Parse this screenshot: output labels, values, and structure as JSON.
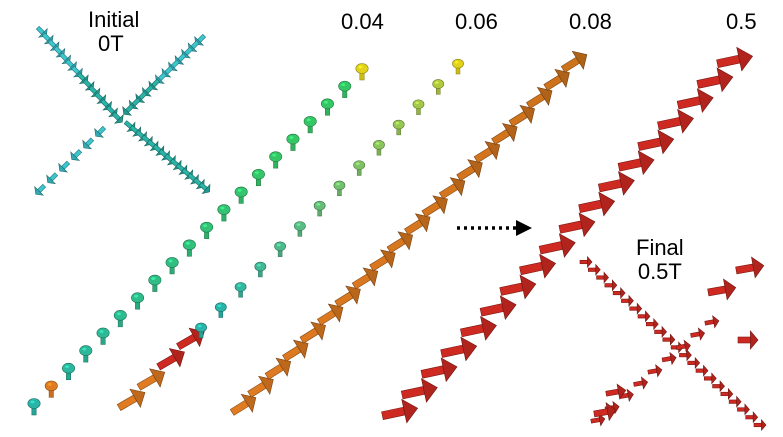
{
  "labels": {
    "initial_line1": "Initial",
    "initial_line2": "0T",
    "field_004": "0.04",
    "field_006": "0.06",
    "field_008": "0.08",
    "field_05": "0.5",
    "final_line1": "Final",
    "final_line2": "0.5T"
  },
  "colors": {
    "cyan": "#3cc6cf",
    "teal": "#2ab4a8",
    "green": "#35c766",
    "yellow": "#e2d21a",
    "orange": "#e07b22",
    "red": "#cf2a22",
    "arrow_black": "#000000"
  },
  "sequence_arrow_icon": "dotted-arrow-right-icon"
}
